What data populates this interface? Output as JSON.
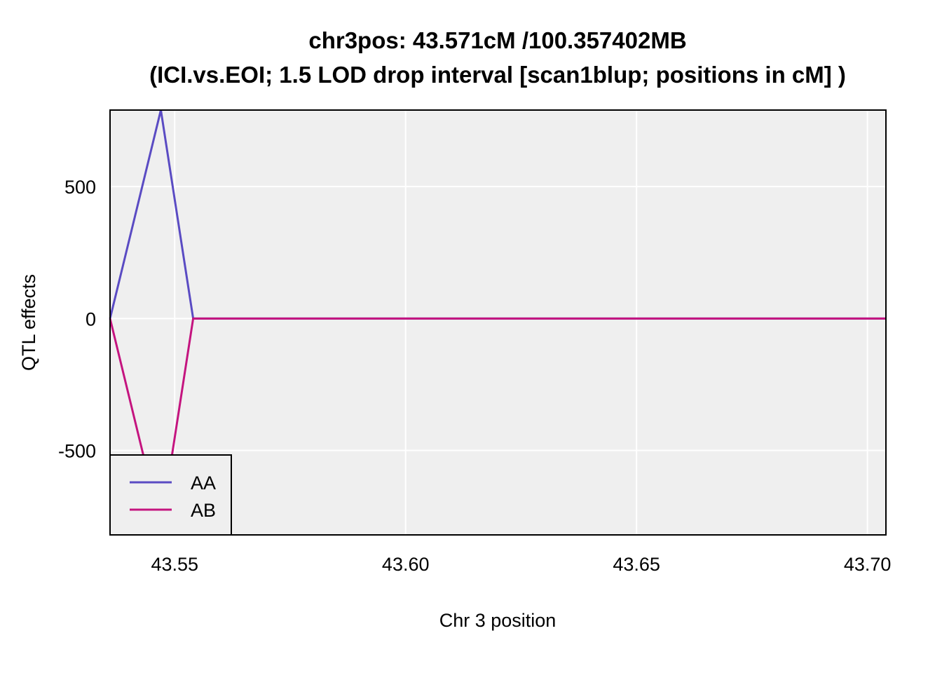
{
  "chart_data": {
    "type": "line",
    "title_line1": "chr3pos: 43.571cM /100.357402MB",
    "title_line2": "(ICI.vs.EOI; 1.5 LOD drop interval [scan1blup; positions in cM] )",
    "xlabel": "Chr 3 position",
    "ylabel": "QTL effects",
    "xlim": [
      43.536,
      43.704
    ],
    "ylim": [
      -820,
      790
    ],
    "x_ticks": [
      43.55,
      43.6,
      43.65,
      43.7
    ],
    "x_tick_labels": [
      "43.55",
      "43.60",
      "43.65",
      "43.70"
    ],
    "y_ticks": [
      -500,
      0,
      500
    ],
    "y_tick_labels": [
      "-500",
      "0",
      "500"
    ],
    "grid": true,
    "legend_position": "bottom-left",
    "background_color": "#efefef",
    "grid_color": "#ffffff",
    "series": [
      {
        "name": "AA",
        "color": "#5a4bc3",
        "x": [
          43.536,
          43.547,
          43.554,
          43.704
        ],
        "y": [
          0,
          790,
          0,
          0
        ]
      },
      {
        "name": "AB",
        "color": "#c4147f",
        "x": [
          43.536,
          43.547,
          43.554,
          43.704
        ],
        "y": [
          0,
          -790,
          0,
          0
        ]
      }
    ]
  }
}
